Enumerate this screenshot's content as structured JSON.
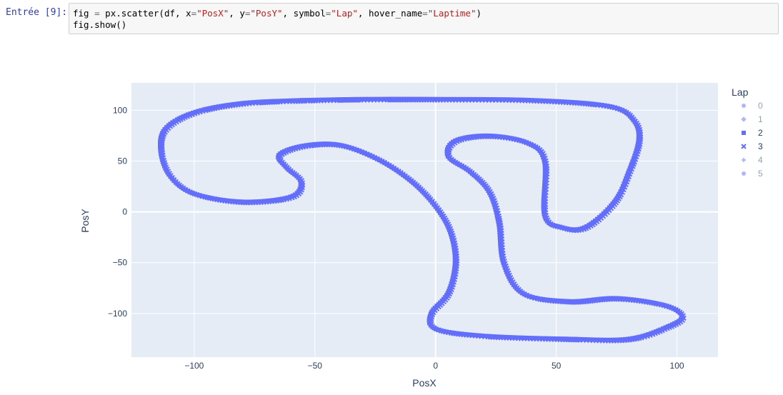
{
  "cell": {
    "prompt": "Entrée [9]:",
    "code_lines": [
      [
        {
          "t": "fig",
          "c": "k"
        },
        {
          "t": " ",
          "c": "k"
        },
        {
          "t": "=",
          "c": "op"
        },
        {
          "t": " px.scatter(df, x",
          "c": "k"
        },
        {
          "t": "=",
          "c": "op"
        },
        {
          "t": "\"PosX\"",
          "c": "str"
        },
        {
          "t": ", y",
          "c": "k"
        },
        {
          "t": "=",
          "c": "op"
        },
        {
          "t": "\"PosY\"",
          "c": "str"
        },
        {
          "t": ", symbol",
          "c": "k"
        },
        {
          "t": "=",
          "c": "op"
        },
        {
          "t": "\"Lap\"",
          "c": "str"
        },
        {
          "t": ", hover_name",
          "c": "k"
        },
        {
          "t": "=",
          "c": "op"
        },
        {
          "t": "\"Laptime\"",
          "c": "str"
        },
        {
          "t": ")",
          "c": "k"
        }
      ],
      [
        {
          "t": "fig.show()",
          "c": "k"
        }
      ]
    ]
  },
  "chart_data": {
    "type": "scatter",
    "title": "",
    "xlabel": "PosX",
    "ylabel": "PosY",
    "xlim": [
      -126,
      117
    ],
    "ylim": [
      -143,
      127
    ],
    "xticks": [
      -100,
      -50,
      0,
      50,
      100
    ],
    "xtick_labels": [
      "−100",
      "−50",
      "0",
      "50",
      "100"
    ],
    "yticks": [
      100,
      50,
      0,
      -50,
      -100
    ],
    "ytick_labels": [
      "100",
      "50",
      "0",
      "−50",
      "−100"
    ],
    "grid": true,
    "marker_color": "#636efa",
    "background_color": "#E5ECF6",
    "legend": {
      "title": "Lap",
      "placement": "right",
      "entries": [
        {
          "name": "0",
          "symbol": "circle",
          "opacity": 0.5
        },
        {
          "name": "1",
          "symbol": "diamond",
          "opacity": 0.5
        },
        {
          "name": "2",
          "symbol": "square",
          "opacity": 1.0
        },
        {
          "name": "3",
          "symbol": "x",
          "opacity": 1.0
        },
        {
          "name": "4",
          "symbol": "cross",
          "opacity": 0.5
        },
        {
          "name": "5",
          "symbol": "circle",
          "opacity": 0.5
        }
      ]
    },
    "track_path": [
      [
        -55,
        110
      ],
      [
        -30,
        111
      ],
      [
        0,
        111
      ],
      [
        40,
        110
      ],
      [
        72,
        104
      ],
      [
        82,
        90
      ],
      [
        84,
        70
      ],
      [
        80,
        40
      ],
      [
        74,
        10
      ],
      [
        62,
        -15
      ],
      [
        52,
        -15
      ],
      [
        45,
        -3
      ],
      [
        45,
        50
      ],
      [
        38,
        68
      ],
      [
        22,
        75
      ],
      [
        8,
        70
      ],
      [
        5,
        55
      ],
      [
        14,
        40
      ],
      [
        22,
        20
      ],
      [
        26,
        -10
      ],
      [
        28,
        -50
      ],
      [
        36,
        -80
      ],
      [
        55,
        -88
      ],
      [
        75,
        -85
      ],
      [
        95,
        -92
      ],
      [
        102,
        -103
      ],
      [
        96,
        -113
      ],
      [
        80,
        -125
      ],
      [
        55,
        -125
      ],
      [
        20,
        -122
      ],
      [
        0,
        -115
      ],
      [
        -2,
        -100
      ],
      [
        5,
        -80
      ],
      [
        8,
        -50
      ],
      [
        6,
        -20
      ],
      [
        0,
        5
      ],
      [
        -10,
        30
      ],
      [
        -24,
        52
      ],
      [
        -40,
        66
      ],
      [
        -55,
        65
      ],
      [
        -65,
        56
      ],
      [
        -62,
        44
      ],
      [
        -56,
        30
      ],
      [
        -60,
        15
      ],
      [
        -80,
        10
      ],
      [
        -100,
        18
      ],
      [
        -110,
        35
      ],
      [
        -114,
        60
      ],
      [
        -112,
        82
      ],
      [
        -100,
        98
      ],
      [
        -80,
        107
      ],
      [
        -55,
        110
      ]
    ],
    "series": [
      {
        "name": "2",
        "symbol": "square",
        "offset": [
          0,
          0
        ],
        "visible": true
      },
      {
        "name": "3",
        "symbol": "x",
        "offset": [
          0.8,
          -0.9
        ],
        "visible": true
      }
    ]
  }
}
